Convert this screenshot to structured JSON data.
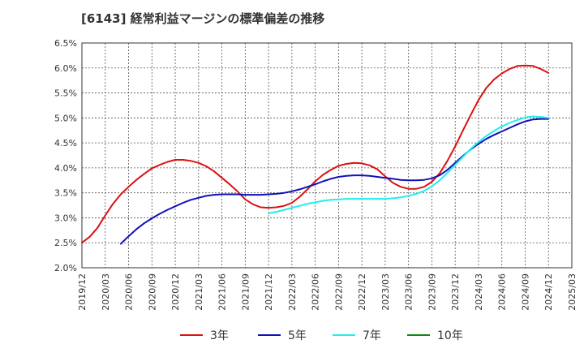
{
  "chart_data": {
    "type": "line",
    "title": "[6143]  経常利益マージンの標準偏差の推移",
    "xlabel": "",
    "ylabel": "",
    "ylim": [
      2.0,
      6.5
    ],
    "y_ticks": [
      "2.0%",
      "2.5%",
      "3.0%",
      "3.5%",
      "4.0%",
      "4.5%",
      "5.0%",
      "5.5%",
      "6.0%",
      "6.5%"
    ],
    "x_ticks": [
      "2019/12",
      "2020/03",
      "2020/06",
      "2020/09",
      "2020/12",
      "2021/03",
      "2021/06",
      "2021/09",
      "2021/12",
      "2022/03",
      "2022/06",
      "2022/09",
      "2022/12",
      "2023/03",
      "2023/06",
      "2023/09",
      "2023/12",
      "2024/03",
      "2024/06",
      "2024/09",
      "2024/12",
      "2025/03"
    ],
    "grid": true,
    "legend_position": "bottom",
    "colors": {
      "3y": "#dd1111",
      "5y": "#1111bb",
      "7y": "#22eeee",
      "10y": "#118811"
    },
    "series": [
      {
        "name": "3年",
        "color": "#dd1111",
        "x": [
          "2019/12",
          "2020/01",
          "2020/02",
          "2020/03",
          "2020/04",
          "2020/05",
          "2020/06",
          "2020/07",
          "2020/08",
          "2020/09",
          "2020/10",
          "2020/11",
          "2020/12",
          "2021/01",
          "2021/02",
          "2021/03",
          "2021/04",
          "2021/05",
          "2021/06",
          "2021/07",
          "2021/08",
          "2021/09",
          "2021/10",
          "2021/11",
          "2021/12",
          "2022/01",
          "2022/02",
          "2022/03",
          "2022/04",
          "2022/05",
          "2022/06",
          "2022/07",
          "2022/08",
          "2022/09",
          "2022/10",
          "2022/11",
          "2022/12",
          "2023/01",
          "2023/02",
          "2023/03",
          "2023/04",
          "2023/05",
          "2023/06",
          "2023/07",
          "2023/08",
          "2023/09",
          "2023/10",
          "2023/11",
          "2023/12",
          "2024/01",
          "2024/02",
          "2024/03",
          "2024/04",
          "2024/05",
          "2024/06",
          "2024/07",
          "2024/08",
          "2024/09",
          "2024/10",
          "2024/11",
          "2024/12"
        ],
        "values": [
          2.5,
          2.62,
          2.8,
          3.05,
          3.28,
          3.47,
          3.62,
          3.76,
          3.88,
          3.99,
          4.06,
          4.12,
          4.16,
          4.16,
          4.14,
          4.1,
          4.03,
          3.93,
          3.8,
          3.67,
          3.53,
          3.37,
          3.27,
          3.21,
          3.2,
          3.21,
          3.24,
          3.3,
          3.42,
          3.57,
          3.73,
          3.86,
          3.96,
          4.04,
          4.08,
          4.1,
          4.09,
          4.05,
          3.97,
          3.83,
          3.7,
          3.62,
          3.58,
          3.58,
          3.62,
          3.72,
          3.89,
          4.14,
          4.43,
          4.75,
          5.06,
          5.36,
          5.6,
          5.77,
          5.89,
          5.98,
          6.04,
          6.05,
          6.04,
          5.98,
          5.9
        ]
      },
      {
        "name": "5年",
        "color": "#1111bb",
        "x": [
          "2020/05",
          "2020/06",
          "2020/07",
          "2020/08",
          "2020/09",
          "2020/10",
          "2020/11",
          "2020/12",
          "2021/01",
          "2021/02",
          "2021/03",
          "2021/04",
          "2021/05",
          "2021/06",
          "2021/07",
          "2021/08",
          "2021/09",
          "2021/10",
          "2021/11",
          "2021/12",
          "2022/01",
          "2022/02",
          "2022/03",
          "2022/04",
          "2022/05",
          "2022/06",
          "2022/07",
          "2022/08",
          "2022/09",
          "2022/10",
          "2022/11",
          "2022/12",
          "2023/01",
          "2023/02",
          "2023/03",
          "2023/04",
          "2023/05",
          "2023/06",
          "2023/07",
          "2023/08",
          "2023/09",
          "2023/10",
          "2023/11",
          "2023/12",
          "2024/01",
          "2024/02",
          "2024/03",
          "2024/04",
          "2024/05",
          "2024/06",
          "2024/07",
          "2024/08",
          "2024/09",
          "2024/10",
          "2024/11",
          "2024/12"
        ],
        "values": [
          2.48,
          2.63,
          2.77,
          2.89,
          2.99,
          3.08,
          3.16,
          3.23,
          3.3,
          3.36,
          3.4,
          3.44,
          3.46,
          3.47,
          3.47,
          3.47,
          3.46,
          3.46,
          3.46,
          3.47,
          3.48,
          3.5,
          3.53,
          3.57,
          3.62,
          3.67,
          3.73,
          3.78,
          3.82,
          3.84,
          3.85,
          3.85,
          3.84,
          3.82,
          3.8,
          3.78,
          3.76,
          3.75,
          3.75,
          3.76,
          3.79,
          3.85,
          3.96,
          4.1,
          4.24,
          4.37,
          4.48,
          4.58,
          4.66,
          4.73,
          4.8,
          4.87,
          4.93,
          4.97,
          4.98,
          4.98
        ]
      },
      {
        "name": "7年",
        "color": "#22eeee",
        "x": [
          "2021/12",
          "2022/01",
          "2022/02",
          "2022/03",
          "2022/04",
          "2022/05",
          "2022/06",
          "2022/07",
          "2022/08",
          "2022/09",
          "2022/10",
          "2022/11",
          "2022/12",
          "2023/01",
          "2023/02",
          "2023/03",
          "2023/04",
          "2023/05",
          "2023/06",
          "2023/07",
          "2023/08",
          "2023/09",
          "2023/10",
          "2023/11",
          "2023/12",
          "2024/01",
          "2024/02",
          "2024/03",
          "2024/04",
          "2024/05",
          "2024/06",
          "2024/07",
          "2024/08",
          "2024/09",
          "2024/10",
          "2024/11",
          "2024/12"
        ],
        "values": [
          3.09,
          3.12,
          3.16,
          3.2,
          3.24,
          3.28,
          3.31,
          3.34,
          3.36,
          3.37,
          3.38,
          3.38,
          3.38,
          3.38,
          3.38,
          3.38,
          3.39,
          3.41,
          3.44,
          3.48,
          3.54,
          3.63,
          3.75,
          3.9,
          4.06,
          4.22,
          4.38,
          4.52,
          4.64,
          4.74,
          4.83,
          4.9,
          4.96,
          5.01,
          5.03,
          5.02,
          5.0
        ]
      },
      {
        "name": "10年",
        "color": "#118811",
        "x": [],
        "values": []
      }
    ]
  }
}
